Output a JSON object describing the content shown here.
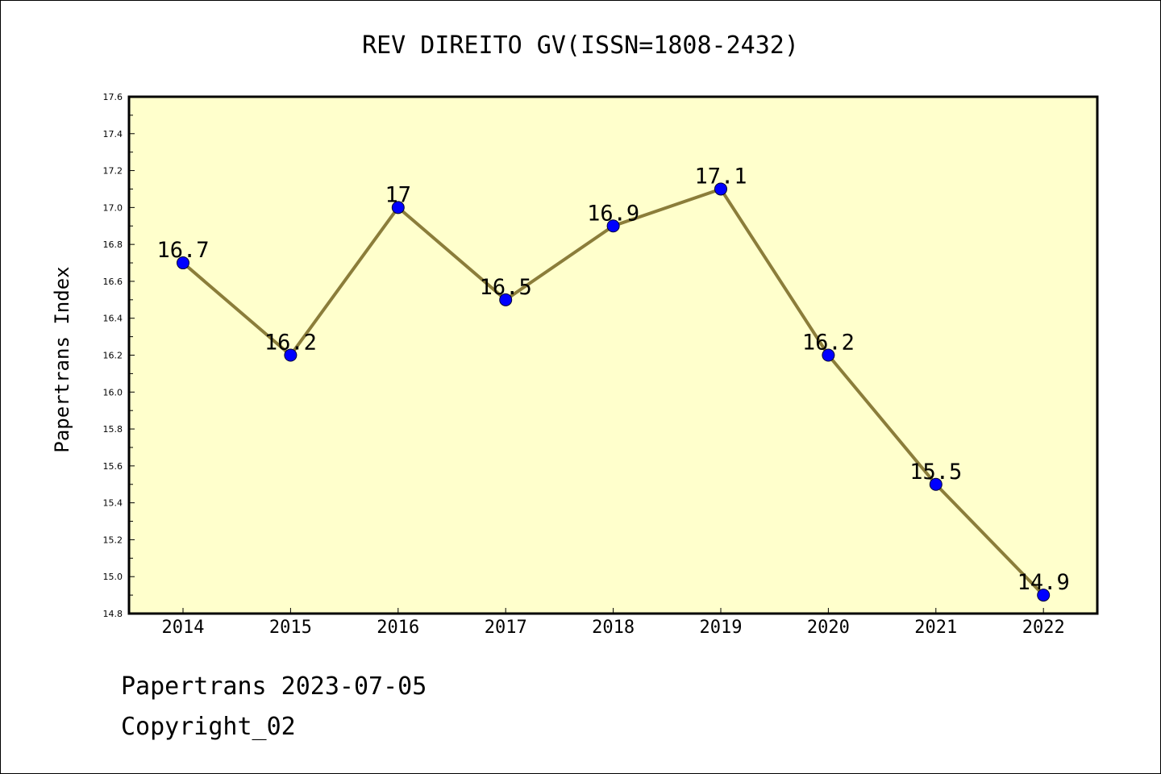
{
  "chart_data": {
    "type": "line",
    "title": "REV DIREITO GV(ISSN=1808-2432)",
    "xlabel": "",
    "ylabel": "Papertrans Index",
    "categories": [
      "2014",
      "2015",
      "2016",
      "2017",
      "2018",
      "2019",
      "2020",
      "2021",
      "2022"
    ],
    "series": [
      {
        "values": [
          16.7,
          16.2,
          17.0,
          16.5,
          16.9,
          17.1,
          16.2,
          15.5,
          14.9
        ],
        "data_labels": [
          "16.7",
          "16.2",
          "17",
          "16.5",
          "16.9",
          "17.1",
          "16.2",
          "15.5",
          "14.9"
        ]
      }
    ],
    "ylim": [
      14.8,
      17.6
    ],
    "yticks": [
      "14.8",
      "15.0",
      "15.2",
      "15.4",
      "15.6",
      "15.8",
      "16.0",
      "16.2",
      "16.4",
      "16.6",
      "16.8",
      "17.0",
      "17.2",
      "17.4",
      "17.6"
    ],
    "grid": false,
    "legend": "none",
    "colors": {
      "plot_background": "#ffffcc",
      "line": "#8b7d3a",
      "marker": "#0000ff"
    }
  },
  "footer": {
    "line1": "Papertrans 2023-07-05",
    "line2": "Copyright_02"
  }
}
